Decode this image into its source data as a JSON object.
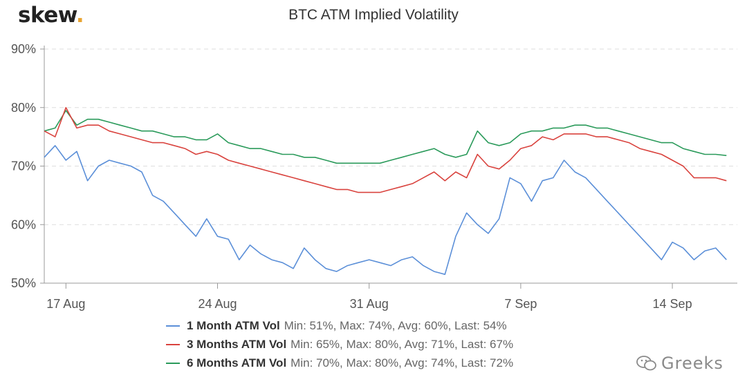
{
  "brand": {
    "logo_text": "skew",
    "logo_dot": ".",
    "watermark": "Greeks"
  },
  "colors": {
    "one_month": "#5b8fd8",
    "three_months": "#d9423d",
    "six_months": "#2a9a5a",
    "grid": "#dddddd",
    "logo_dot": "#e8a431"
  },
  "chart_data": {
    "type": "line",
    "title": "BTC ATM Implied Volatility",
    "xlabel": "",
    "ylabel": "",
    "x_ticks": [
      "17 Aug",
      "24 Aug",
      "31 Aug",
      "7 Sep",
      "14 Sep"
    ],
    "x_unit": "date (Aug–Sep)",
    "xlim": [
      "2020-08-16",
      "2020-09-17"
    ],
    "y_ticks": [
      "50%",
      "60%",
      "70%",
      "80%",
      "90%"
    ],
    "ylim": [
      50,
      90
    ],
    "grid": true,
    "legend_position": "bottom",
    "series": [
      {
        "name": "1 Month ATM Vol",
        "stats": "Min: 51%, Max: 74%, Avg: 60%, Last: 54%",
        "color": "#5b8fd8",
        "points": [
          [
            "2020-08-16",
            71.5
          ],
          [
            "2020-08-16 12:00",
            73.5
          ],
          [
            "2020-08-17",
            71
          ],
          [
            "2020-08-17 12:00",
            72.5
          ],
          [
            "2020-08-18",
            67.5
          ],
          [
            "2020-08-18 12:00",
            70
          ],
          [
            "2020-08-19",
            71
          ],
          [
            "2020-08-19 12:00",
            70.5
          ],
          [
            "2020-08-20",
            70
          ],
          [
            "2020-08-20 12:00",
            69
          ],
          [
            "2020-08-21",
            65
          ],
          [
            "2020-08-21 12:00",
            64
          ],
          [
            "2020-08-22",
            62
          ],
          [
            "2020-08-22 12:00",
            60
          ],
          [
            "2020-08-23",
            58
          ],
          [
            "2020-08-23 12:00",
            61
          ],
          [
            "2020-08-24",
            58
          ],
          [
            "2020-08-24 12:00",
            57.5
          ],
          [
            "2020-08-25",
            54
          ],
          [
            "2020-08-25 12:00",
            56.5
          ],
          [
            "2020-08-26",
            55
          ],
          [
            "2020-08-26 12:00",
            54
          ],
          [
            "2020-08-27",
            53.5
          ],
          [
            "2020-08-27 12:00",
            52.5
          ],
          [
            "2020-08-28",
            56
          ],
          [
            "2020-08-28 12:00",
            54
          ],
          [
            "2020-08-29",
            52.5
          ],
          [
            "2020-08-29 12:00",
            52
          ],
          [
            "2020-08-30",
            53
          ],
          [
            "2020-08-30 12:00",
            53.5
          ],
          [
            "2020-08-31",
            54
          ],
          [
            "2020-08-31 12:00",
            53.5
          ],
          [
            "2020-09-01",
            53
          ],
          [
            "2020-09-01 12:00",
            54
          ],
          [
            "2020-09-02",
            54.5
          ],
          [
            "2020-09-02 12:00",
            53
          ],
          [
            "2020-09-03",
            52
          ],
          [
            "2020-09-03 12:00",
            51.5
          ],
          [
            "2020-09-04",
            58
          ],
          [
            "2020-09-04 12:00",
            62
          ],
          [
            "2020-09-05",
            60
          ],
          [
            "2020-09-05 12:00",
            58.5
          ],
          [
            "2020-09-06",
            61
          ],
          [
            "2020-09-06 12:00",
            68
          ],
          [
            "2020-09-07",
            67
          ],
          [
            "2020-09-07 12:00",
            64
          ],
          [
            "2020-09-08",
            67.5
          ],
          [
            "2020-09-08 12:00",
            68
          ],
          [
            "2020-09-09",
            71
          ],
          [
            "2020-09-09 12:00",
            69
          ],
          [
            "2020-09-10",
            68
          ],
          [
            "2020-09-10 12:00",
            66
          ],
          [
            "2020-09-11",
            64
          ],
          [
            "2020-09-11 12:00",
            62
          ],
          [
            "2020-09-12",
            60
          ],
          [
            "2020-09-12 12:00",
            58
          ],
          [
            "2020-09-13",
            56
          ],
          [
            "2020-09-13 12:00",
            54
          ],
          [
            "2020-09-14",
            57
          ],
          [
            "2020-09-14 12:00",
            56
          ],
          [
            "2020-09-15",
            54
          ],
          [
            "2020-09-15 12:00",
            55.5
          ],
          [
            "2020-09-16",
            56
          ],
          [
            "2020-09-16 12:00",
            54
          ]
        ]
      },
      {
        "name": "3 Months ATM Vol",
        "stats": "Min: 65%, Max: 80%, Avg: 71%, Last: 67%",
        "color": "#d9423d",
        "points": [
          [
            "2020-08-16",
            76
          ],
          [
            "2020-08-16 12:00",
            75
          ],
          [
            "2020-08-17",
            80
          ],
          [
            "2020-08-17 12:00",
            76.5
          ],
          [
            "2020-08-18",
            77
          ],
          [
            "2020-08-18 12:00",
            77
          ],
          [
            "2020-08-19",
            76
          ],
          [
            "2020-08-19 12:00",
            75.5
          ],
          [
            "2020-08-20",
            75
          ],
          [
            "2020-08-20 12:00",
            74.5
          ],
          [
            "2020-08-21",
            74
          ],
          [
            "2020-08-21 12:00",
            74
          ],
          [
            "2020-08-22",
            73.5
          ],
          [
            "2020-08-22 12:00",
            73
          ],
          [
            "2020-08-23",
            72
          ],
          [
            "2020-08-23 12:00",
            72.5
          ],
          [
            "2020-08-24",
            72
          ],
          [
            "2020-08-24 12:00",
            71
          ],
          [
            "2020-08-25",
            70.5
          ],
          [
            "2020-08-25 12:00",
            70
          ],
          [
            "2020-08-26",
            69.5
          ],
          [
            "2020-08-26 12:00",
            69
          ],
          [
            "2020-08-27",
            68.5
          ],
          [
            "2020-08-27 12:00",
            68
          ],
          [
            "2020-08-28",
            67.5
          ],
          [
            "2020-08-28 12:00",
            67
          ],
          [
            "2020-08-29",
            66.5
          ],
          [
            "2020-08-29 12:00",
            66
          ],
          [
            "2020-08-30",
            66
          ],
          [
            "2020-08-30 12:00",
            65.5
          ],
          [
            "2020-08-31",
            65.5
          ],
          [
            "2020-08-31 12:00",
            65.5
          ],
          [
            "2020-09-01",
            66
          ],
          [
            "2020-09-01 12:00",
            66.5
          ],
          [
            "2020-09-02",
            67
          ],
          [
            "2020-09-02 12:00",
            68
          ],
          [
            "2020-09-03",
            69
          ],
          [
            "2020-09-03 12:00",
            67.5
          ],
          [
            "2020-09-04",
            69
          ],
          [
            "2020-09-04 12:00",
            68
          ],
          [
            "2020-09-05",
            72
          ],
          [
            "2020-09-05 12:00",
            70
          ],
          [
            "2020-09-06",
            69.5
          ],
          [
            "2020-09-06 12:00",
            71
          ],
          [
            "2020-09-07",
            73
          ],
          [
            "2020-09-07 12:00",
            73.5
          ],
          [
            "2020-09-08",
            75
          ],
          [
            "2020-09-08 12:00",
            74.5
          ],
          [
            "2020-09-09",
            75.5
          ],
          [
            "2020-09-09 12:00",
            75.5
          ],
          [
            "2020-09-10",
            75.5
          ],
          [
            "2020-09-10 12:00",
            75
          ],
          [
            "2020-09-11",
            75
          ],
          [
            "2020-09-11 12:00",
            74.5
          ],
          [
            "2020-09-12",
            74
          ],
          [
            "2020-09-12 12:00",
            73
          ],
          [
            "2020-09-13",
            72.5
          ],
          [
            "2020-09-13 12:00",
            72
          ],
          [
            "2020-09-14",
            71
          ],
          [
            "2020-09-14 12:00",
            70
          ],
          [
            "2020-09-15",
            68
          ],
          [
            "2020-09-15 12:00",
            68
          ],
          [
            "2020-09-16",
            68
          ],
          [
            "2020-09-16 12:00",
            67.5
          ]
        ]
      },
      {
        "name": "6 Months ATM Vol",
        "stats": "Min: 70%, Max: 80%, Avg: 74%, Last: 72%",
        "color": "#2a9a5a",
        "points": [
          [
            "2020-08-16",
            76
          ],
          [
            "2020-08-16 12:00",
            76.5
          ],
          [
            "2020-08-17",
            79.5
          ],
          [
            "2020-08-17 12:00",
            77
          ],
          [
            "2020-08-18",
            78
          ],
          [
            "2020-08-18 12:00",
            78
          ],
          [
            "2020-08-19",
            77.5
          ],
          [
            "2020-08-19 12:00",
            77
          ],
          [
            "2020-08-20",
            76.5
          ],
          [
            "2020-08-20 12:00",
            76
          ],
          [
            "2020-08-21",
            76
          ],
          [
            "2020-08-21 12:00",
            75.5
          ],
          [
            "2020-08-22",
            75
          ],
          [
            "2020-08-22 12:00",
            75
          ],
          [
            "2020-08-23",
            74.5
          ],
          [
            "2020-08-23 12:00",
            74.5
          ],
          [
            "2020-08-24",
            75.5
          ],
          [
            "2020-08-24 12:00",
            74
          ],
          [
            "2020-08-25",
            73.5
          ],
          [
            "2020-08-25 12:00",
            73
          ],
          [
            "2020-08-26",
            73
          ],
          [
            "2020-08-26 12:00",
            72.5
          ],
          [
            "2020-08-27",
            72
          ],
          [
            "2020-08-27 12:00",
            72
          ],
          [
            "2020-08-28",
            71.5
          ],
          [
            "2020-08-28 12:00",
            71.5
          ],
          [
            "2020-08-29",
            71
          ],
          [
            "2020-08-29 12:00",
            70.5
          ],
          [
            "2020-08-30",
            70.5
          ],
          [
            "2020-08-30 12:00",
            70.5
          ],
          [
            "2020-08-31",
            70.5
          ],
          [
            "2020-08-31 12:00",
            70.5
          ],
          [
            "2020-09-01",
            71
          ],
          [
            "2020-09-01 12:00",
            71.5
          ],
          [
            "2020-09-02",
            72
          ],
          [
            "2020-09-02 12:00",
            72.5
          ],
          [
            "2020-09-03",
            73
          ],
          [
            "2020-09-03 12:00",
            72
          ],
          [
            "2020-09-04",
            71.5
          ],
          [
            "2020-09-04 12:00",
            72
          ],
          [
            "2020-09-05",
            76
          ],
          [
            "2020-09-05 12:00",
            74
          ],
          [
            "2020-09-06",
            73.5
          ],
          [
            "2020-09-06 12:00",
            74
          ],
          [
            "2020-09-07",
            75.5
          ],
          [
            "2020-09-07 12:00",
            76
          ],
          [
            "2020-09-08",
            76
          ],
          [
            "2020-09-08 12:00",
            76.5
          ],
          [
            "2020-09-09",
            76.5
          ],
          [
            "2020-09-09 12:00",
            77
          ],
          [
            "2020-09-10",
            77
          ],
          [
            "2020-09-10 12:00",
            76.5
          ],
          [
            "2020-09-11",
            76.5
          ],
          [
            "2020-09-11 12:00",
            76
          ],
          [
            "2020-09-12",
            75.5
          ],
          [
            "2020-09-12 12:00",
            75
          ],
          [
            "2020-09-13",
            74.5
          ],
          [
            "2020-09-13 12:00",
            74
          ],
          [
            "2020-09-14",
            74
          ],
          [
            "2020-09-14 12:00",
            73
          ],
          [
            "2020-09-15",
            72.5
          ],
          [
            "2020-09-15 12:00",
            72
          ],
          [
            "2020-09-16",
            72
          ],
          [
            "2020-09-16 12:00",
            71.8
          ]
        ]
      }
    ]
  }
}
